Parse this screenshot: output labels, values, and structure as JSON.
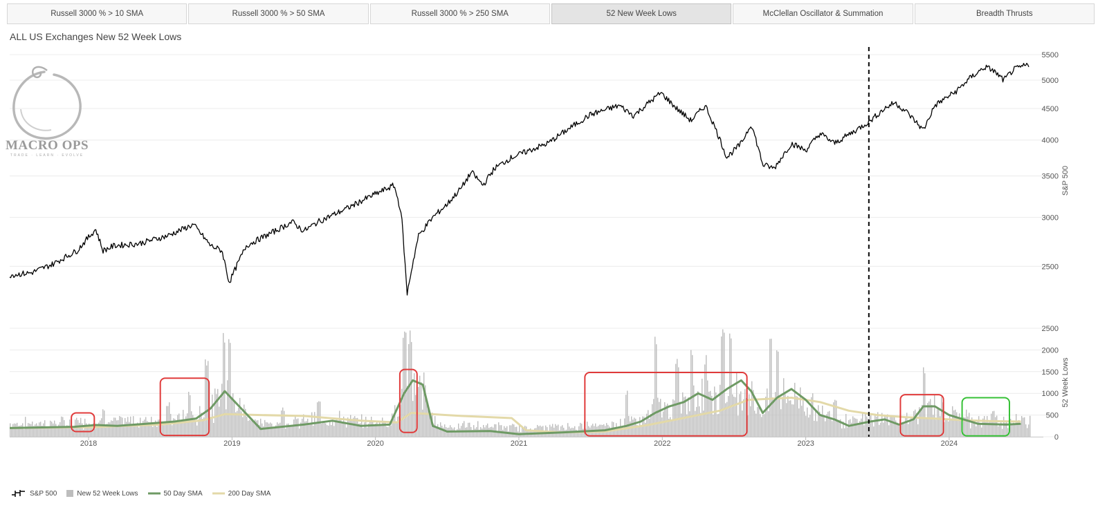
{
  "tabs": [
    {
      "label": "Russell 3000 % > 10 SMA",
      "active": false
    },
    {
      "label": "Russell 3000 % > 50 SMA",
      "active": false
    },
    {
      "label": "Russell 3000 % > 250 SMA",
      "active": false
    },
    {
      "label": "52 New Week Lows",
      "active": true
    },
    {
      "label": "McClellan Oscillator & Summation",
      "active": false
    },
    {
      "label": "Breadth Thrusts",
      "active": false
    }
  ],
  "logo": {
    "text": "MACRO OPS",
    "tagline": "TRADE · LEARN · EVOLVE",
    "color": "#9a9a9a"
  },
  "chart_data": {
    "type": "line",
    "title": "ALL US Exchanges New 52 Week Lows",
    "x_axis": {
      "ticks": [
        "2018",
        "2019",
        "2020",
        "2021",
        "2022",
        "2023",
        "2024"
      ],
      "range": [
        2017.45,
        2024.56
      ]
    },
    "top_panel": {
      "ylabel": "S&P 500",
      "scale": "log",
      "ylim": [
        2200,
        5600
      ],
      "yticks": [
        2500,
        3000,
        3500,
        4000,
        4500,
        5000,
        5500
      ],
      "series": [
        {
          "name": "S&P 500",
          "color": "#000000",
          "x": [
            2017.45,
            2017.6,
            2017.75,
            2017.92,
            2018.05,
            2018.1,
            2018.18,
            2018.35,
            2018.55,
            2018.73,
            2018.85,
            2018.93,
            2018.98,
            2019.1,
            2019.3,
            2019.42,
            2019.5,
            2019.6,
            2019.8,
            2019.95,
            2020.13,
            2020.18,
            2020.22,
            2020.3,
            2020.4,
            2020.5,
            2020.6,
            2020.67,
            2020.75,
            2020.83,
            2020.95,
            2021.2,
            2021.5,
            2021.7,
            2021.8,
            2021.99,
            2022.1,
            2022.2,
            2022.3,
            2022.45,
            2022.55,
            2022.62,
            2022.7,
            2022.78,
            2022.9,
            2023.0,
            2023.1,
            2023.2,
            2023.35,
            2023.45,
            2023.55,
            2023.62,
            2023.7,
            2023.82,
            2023.9,
            2024.05,
            2024.15,
            2024.25,
            2024.3,
            2024.38,
            2024.45,
            2024.55
          ],
          "y": [
            2420,
            2440,
            2520,
            2650,
            2870,
            2650,
            2700,
            2720,
            2800,
            2920,
            2700,
            2650,
            2350,
            2700,
            2850,
            2950,
            2850,
            2950,
            3100,
            3230,
            3380,
            3050,
            2250,
            2800,
            3000,
            3150,
            3350,
            3550,
            3380,
            3600,
            3750,
            3950,
            4400,
            4550,
            4380,
            4770,
            4500,
            4300,
            4550,
            3750,
            3950,
            4250,
            3650,
            3600,
            3950,
            3850,
            4100,
            3950,
            4150,
            4300,
            4500,
            4600,
            4450,
            4150,
            4550,
            4800,
            5050,
            5250,
            5200,
            5000,
            5200,
            5300
          ]
        }
      ]
    },
    "bottom_panel": {
      "ylabel": "52 Week Lows",
      "ylim": [
        0,
        2500
      ],
      "yticks": [
        0,
        500,
        1000,
        1500,
        2000,
        2500
      ],
      "bars": {
        "name": "New 52 Week Lows",
        "color": "#bdbdbd",
        "baseline": 150
      },
      "bar_spikes": [
        {
          "x": 2017.92,
          "y": 450
        },
        {
          "x": 2018.1,
          "y": 700
        },
        {
          "x": 2018.55,
          "y": 800
        },
        {
          "x": 2018.7,
          "y": 1100
        },
        {
          "x": 2018.82,
          "y": 1900
        },
        {
          "x": 2018.94,
          "y": 2500
        },
        {
          "x": 2018.98,
          "y": 2500
        },
        {
          "x": 2019.35,
          "y": 700
        },
        {
          "x": 2019.6,
          "y": 850
        },
        {
          "x": 2020.2,
          "y": 2500
        },
        {
          "x": 2020.24,
          "y": 2500
        },
        {
          "x": 2021.75,
          "y": 1100
        },
        {
          "x": 2021.95,
          "y": 2500
        },
        {
          "x": 2022.1,
          "y": 1800
        },
        {
          "x": 2022.2,
          "y": 2200
        },
        {
          "x": 2022.3,
          "y": 1900
        },
        {
          "x": 2022.42,
          "y": 2500
        },
        {
          "x": 2022.47,
          "y": 2500
        },
        {
          "x": 2022.75,
          "y": 2500
        },
        {
          "x": 2022.8,
          "y": 2200
        },
        {
          "x": 2023.2,
          "y": 900
        },
        {
          "x": 2023.82,
          "y": 1600
        },
        {
          "x": 2024.3,
          "y": 600
        }
      ],
      "series": [
        {
          "name": "50 Day SMA",
          "color": "#6e9a64",
          "x": [
            2017.45,
            2017.9,
            2018.05,
            2018.2,
            2018.4,
            2018.6,
            2018.75,
            2018.85,
            2018.95,
            2019.05,
            2019.2,
            2019.5,
            2019.7,
            2019.9,
            2020.1,
            2020.2,
            2020.26,
            2020.33,
            2020.4,
            2020.5,
            2020.8,
            2021.0,
            2021.3,
            2021.6,
            2021.75,
            2021.85,
            2021.95,
            2022.05,
            2022.15,
            2022.25,
            2022.35,
            2022.45,
            2022.55,
            2022.62,
            2022.7,
            2022.8,
            2022.9,
            2023.0,
            2023.1,
            2023.2,
            2023.3,
            2023.45,
            2023.55,
            2023.65,
            2023.75,
            2023.82,
            2023.9,
            2024.0,
            2024.2,
            2024.4,
            2024.5
          ],
          "y": [
            200,
            230,
            270,
            250,
            300,
            350,
            420,
            650,
            1050,
            700,
            180,
            280,
            370,
            250,
            280,
            1000,
            1300,
            1200,
            250,
            120,
            130,
            60,
            100,
            150,
            250,
            350,
            550,
            700,
            800,
            1000,
            850,
            1100,
            1300,
            1050,
            550,
            900,
            1100,
            850,
            500,
            400,
            250,
            350,
            400,
            280,
            400,
            700,
            700,
            500,
            300,
            280,
            300
          ]
        },
        {
          "name": "200 Day SMA",
          "color": "#e3d9a8",
          "x": [
            2017.45,
            2018.0,
            2018.5,
            2018.8,
            2018.95,
            2019.2,
            2019.5,
            2019.9,
            2020.15,
            2020.25,
            2020.6,
            2020.95,
            2021.05,
            2021.3,
            2021.6,
            2021.9,
            2022.1,
            2022.4,
            2022.6,
            2022.9,
            2023.1,
            2023.3,
            2023.5,
            2023.7,
            2023.9,
            2024.1,
            2024.3,
            2024.5
          ],
          "y": [
            200,
            220,
            280,
            380,
            520,
            500,
            480,
            370,
            330,
            550,
            480,
            430,
            150,
            100,
            120,
            270,
            400,
            600,
            850,
            900,
            800,
            600,
            500,
            450,
            420,
            380,
            360,
            350
          ]
        }
      ]
    },
    "annotations": {
      "vertical_line": {
        "x": 2023.44,
        "style": "dashed",
        "color": "#000000"
      },
      "boxes": [
        {
          "color": "#e03a3a",
          "x": [
            2017.88,
            2018.04
          ],
          "y": [
            120,
            550
          ]
        },
        {
          "color": "#e03a3a",
          "x": [
            2018.5,
            2018.84
          ],
          "y": [
            30,
            1350
          ]
        },
        {
          "color": "#e03a3a",
          "x": [
            2020.17,
            2020.29
          ],
          "y": [
            100,
            1550
          ]
        },
        {
          "color": "#e03a3a",
          "x": [
            2021.46,
            2022.59
          ],
          "y": [
            20,
            1480
          ]
        },
        {
          "color": "#e03a3a",
          "x": [
            2023.66,
            2023.96
          ],
          "y": [
            20,
            970
          ]
        },
        {
          "color": "#35c035",
          "x": [
            2024.09,
            2024.42
          ],
          "y": [
            20,
            900
          ]
        }
      ]
    }
  },
  "legend": [
    {
      "label": "S&P 500",
      "kind": "ohlc"
    },
    {
      "label": "New 52 Week Lows",
      "kind": "bar"
    },
    {
      "label": "50 Day SMA",
      "kind": "line"
    },
    {
      "label": "200 Day SMA",
      "kind": "line"
    }
  ]
}
